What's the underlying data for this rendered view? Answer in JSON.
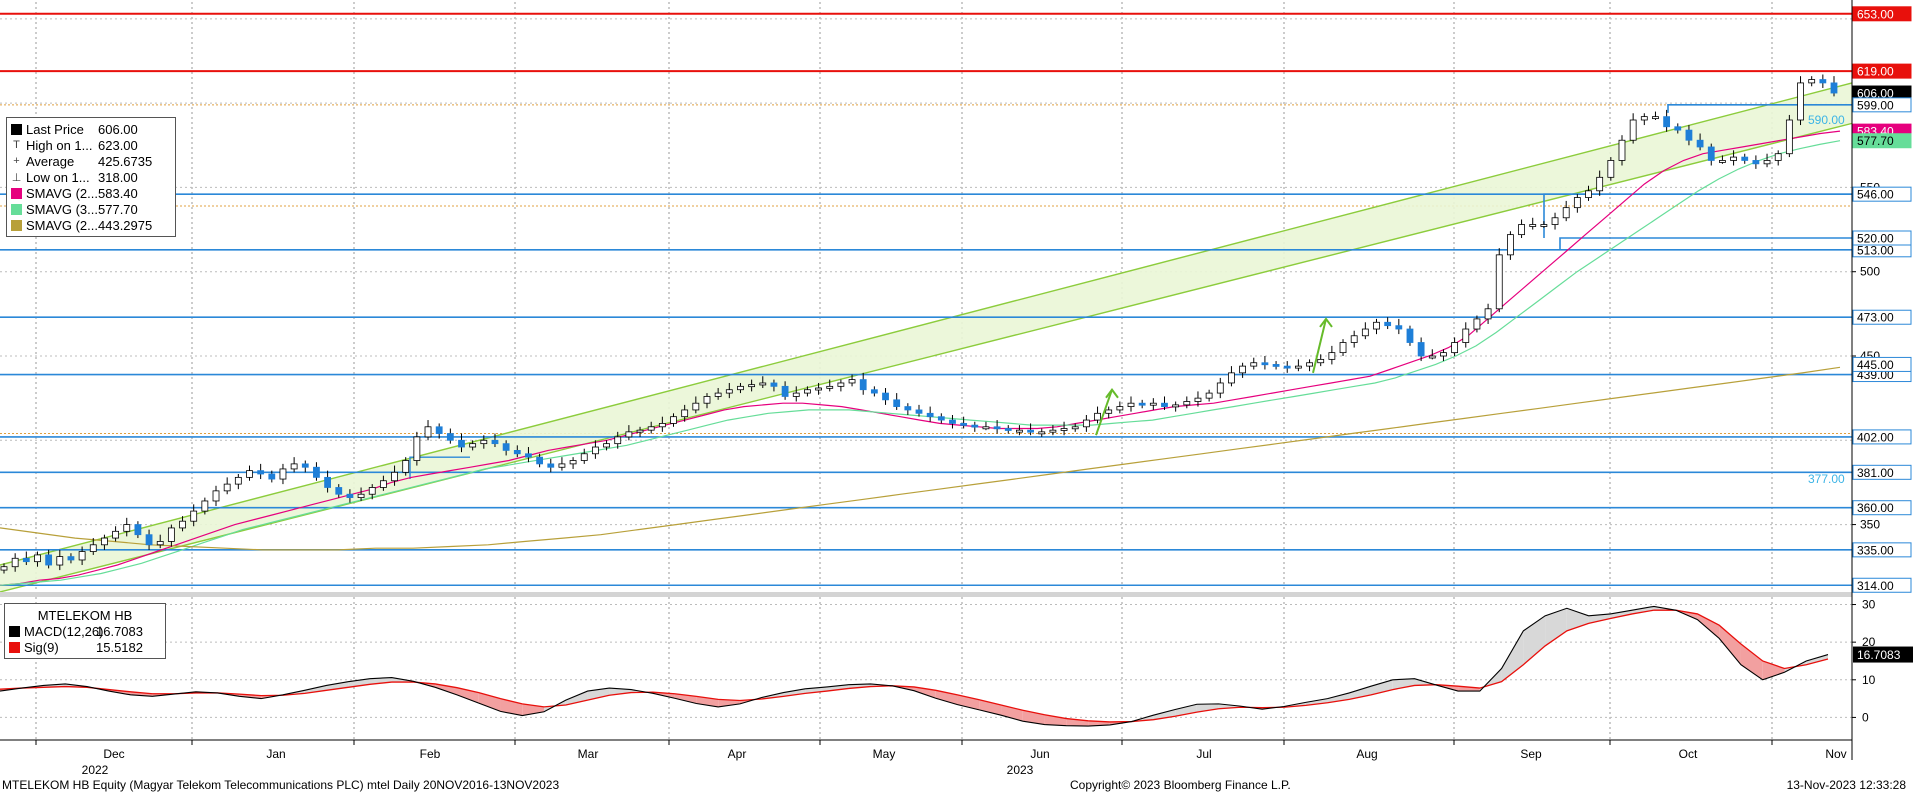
{
  "chart_data": [
    {
      "type": "candlestick",
      "title": "",
      "x_axis": {
        "months": [
          "Dec",
          "Jan",
          "Feb",
          "Mar",
          "Apr",
          "May",
          "Jun",
          "Jul",
          "Aug",
          "Sep",
          "Oct",
          "Nov"
        ],
        "years": [
          "2022",
          "2023"
        ]
      },
      "y_axis": {
        "ylim": [
          310,
          660
        ],
        "ticks": [
          350,
          450,
          500,
          550
        ],
        "side": "right"
      },
      "grid": true,
      "legend": {
        "position": "top-left",
        "entries": [
          {
            "label": "Last Price",
            "value": "606.00",
            "color": "#000000",
            "glyph": "square"
          },
          {
            "label": "High on 1...",
            "value": "623.00",
            "color": "#444444",
            "glyph": "T"
          },
          {
            "label": "Average",
            "value": "425.6735",
            "color": "#444444",
            "glyph": "+"
          },
          {
            "label": "Low on 1...",
            "value": "318.00",
            "color": "#444444",
            "glyph": "⊥"
          },
          {
            "label": "SMAVG (2...",
            "value": "583.40",
            "color": "#e6007e",
            "glyph": "square"
          },
          {
            "label": "SMAVG (3...",
            "value": "577.70",
            "color": "#66dd99",
            "glyph": "square"
          },
          {
            "label": "SMAVG (2...",
            "value": "443.2975",
            "color": "#b8a03a",
            "glyph": "square"
          }
        ]
      },
      "horizontal_levels": [
        {
          "value": 653,
          "label": "653.00",
          "color": "#e8100c",
          "style": "red"
        },
        {
          "value": 619,
          "label": "619.00",
          "color": "#e8100c",
          "style": "red"
        },
        {
          "value": 546,
          "label": "546.00",
          "color": "#2b88d8",
          "style": "blue"
        },
        {
          "value": 513,
          "label": "513.00",
          "color": "#2b88d8",
          "style": "blue"
        },
        {
          "value": 473,
          "label": "473.00",
          "color": "#2b88d8",
          "style": "blue"
        },
        {
          "value": 439,
          "label": "439.00",
          "color": "#2b88d8",
          "style": "blue"
        },
        {
          "value": 402,
          "label": "402.00",
          "color": "#2b88d8",
          "style": "blue"
        },
        {
          "value": 381,
          "label": "381.00",
          "color": "#2b88d8",
          "style": "blue"
        },
        {
          "value": 360,
          "label": "360.00",
          "color": "#2b88d8",
          "style": "blue"
        },
        {
          "value": 335,
          "label": "335.00",
          "color": "#2b88d8",
          "style": "blue"
        },
        {
          "value": 314,
          "label": "314.00",
          "color": "#2b88d8",
          "style": "blue"
        }
      ],
      "value_tags": [
        {
          "value": 606.0,
          "label": "606.00",
          "bg": "#000000",
          "fg": "#ffffff"
        },
        {
          "value": 599.0,
          "label": "599.00",
          "bg": "#ffffff",
          "fg": "#000000",
          "border": "#2b88d8"
        },
        {
          "value": 583.4,
          "label": "583.40",
          "bg": "#e6007e",
          "fg": "#ffffff"
        },
        {
          "value": 577.7,
          "label": "577.70",
          "bg": "#66dd99",
          "fg": "#000000"
        },
        {
          "value": 520.0,
          "label": "520.00",
          "bg": "#ffffff",
          "fg": "#000000",
          "border": "#2b88d8"
        },
        {
          "value": 445.0,
          "label": "445.00",
          "bg": "#ffffff",
          "fg": "#000000",
          "border": "#2b88d8"
        }
      ],
      "annotations": [
        {
          "text": "590.00",
          "value": 590,
          "color": "#3cb4e6"
        },
        {
          "text": "377.00",
          "value": 377,
          "color": "#3cb4e6"
        }
      ],
      "series": [
        {
          "name": "Last Price",
          "kind": "candle",
          "color": "#1e7fd8",
          "close": [
            325,
            330,
            328,
            332,
            326,
            331,
            329,
            334,
            338,
            342,
            346,
            350,
            344,
            338,
            340,
            348,
            352,
            358,
            364,
            370,
            374,
            378,
            382,
            380,
            377,
            383,
            386,
            384,
            378,
            372,
            368,
            366,
            368,
            372,
            376,
            381,
            388,
            402,
            408,
            404,
            400,
            396,
            398,
            400,
            398,
            394,
            392,
            390,
            386,
            384,
            386,
            388,
            392,
            396,
            398,
            402,
            405,
            406,
            408,
            410,
            414,
            418,
            422,
            426,
            428,
            430,
            432,
            433,
            434,
            432,
            426,
            428,
            430,
            431,
            432,
            434,
            436,
            430,
            428,
            424,
            420,
            418,
            416,
            414,
            412,
            410,
            409,
            408,
            408,
            407,
            406,
            406,
            405,
            405,
            406,
            407,
            408,
            412,
            416,
            418,
            420,
            422,
            421,
            422,
            420,
            421,
            423,
            425,
            428,
            434,
            440,
            444,
            446,
            445,
            444,
            443,
            444,
            446,
            448,
            452,
            458,
            462,
            466,
            470,
            468,
            466,
            458,
            450,
            450,
            452,
            458,
            466,
            472,
            478,
            510,
            522,
            528,
            528,
            528,
            532,
            538,
            544,
            548,
            556,
            566,
            578,
            590,
            592,
            592,
            586,
            584,
            578,
            574,
            566,
            566,
            568,
            566,
            564,
            566,
            570,
            590,
            612,
            614,
            612,
            606
          ]
        },
        {
          "name": "SMAVG (2...",
          "kind": "line",
          "color": "#e6007e",
          "values": [
            314,
            315,
            317,
            318,
            320,
            323,
            326,
            330,
            334,
            338,
            342,
            346,
            350,
            353,
            356,
            359,
            362,
            365,
            368,
            371,
            375,
            378,
            380,
            382,
            384,
            386,
            388,
            391,
            394,
            396,
            398,
            400,
            403,
            406,
            409,
            412,
            415,
            418,
            420,
            421,
            422,
            422,
            421,
            420,
            418,
            416,
            414,
            412,
            410,
            409,
            408,
            407,
            407,
            407,
            408,
            410,
            412,
            414,
            416,
            418,
            420,
            421,
            422,
            424,
            426,
            428,
            430,
            432,
            434,
            436,
            438,
            442,
            446,
            450,
            455,
            462,
            472,
            482,
            492,
            502,
            512,
            522,
            532,
            542,
            552,
            560,
            566,
            570,
            572,
            574,
            576,
            578,
            580,
            582,
            583.4
          ]
        },
        {
          "name": "SMAVG (3...",
          "kind": "line",
          "color": "#66dd99",
          "values": [
            314,
            315,
            316,
            317,
            319,
            321,
            324,
            327,
            331,
            335,
            339,
            343,
            347,
            350,
            353,
            356,
            359,
            362,
            365,
            368,
            371,
            374,
            377,
            380,
            383,
            385,
            387,
            389,
            391,
            393,
            395,
            397,
            400,
            403,
            406,
            409,
            412,
            414,
            416,
            417,
            418,
            418,
            418,
            417,
            416,
            415,
            414,
            413,
            412,
            411,
            410,
            409,
            409,
            409,
            409,
            410,
            411,
            412,
            414,
            416,
            418,
            420,
            422,
            424,
            426,
            428,
            430,
            432,
            434,
            437,
            441,
            445,
            450,
            456,
            464,
            473,
            482,
            491,
            500,
            508,
            516,
            524,
            532,
            540,
            548,
            555,
            561,
            566,
            570,
            573,
            575.5,
            577.7
          ]
        },
        {
          "name": "SMAVG (2...",
          "kind": "line",
          "color": "#b8a03a",
          "values": [
            348,
            345,
            342,
            340,
            338,
            337,
            336,
            335,
            335,
            335,
            336,
            336,
            337,
            338,
            340,
            342,
            344,
            347,
            350,
            353,
            356,
            359,
            362,
            365,
            368,
            371,
            374,
            377,
            380,
            383,
            386,
            389,
            392,
            395,
            398,
            401,
            404,
            407,
            410,
            413,
            416,
            419,
            422,
            425,
            428,
            431,
            434,
            437,
            440,
            443.3
          ]
        }
      ]
    },
    {
      "type": "line",
      "title": "MTELEKOM HB",
      "y_axis": {
        "ylim": [
          -6,
          32
        ],
        "ticks": [
          0,
          10,
          20,
          30
        ],
        "side": "right"
      },
      "legend": {
        "position": "top-left",
        "entries": [
          {
            "label": "MACD(12,26)",
            "value": "16.7083",
            "color": "#000000"
          },
          {
            "label": "Sig(9)",
            "value": "15.5182",
            "color": "#e8100c"
          }
        ]
      },
      "value_tag": {
        "value": 16.7083,
        "label": "16.7083",
        "bg": "#000000",
        "fg": "#ffffff"
      },
      "series": [
        {
          "name": "MACD(12,26)",
          "color": "#000000",
          "values": [
            7,
            7.8,
            8.5,
            8.9,
            8.2,
            7,
            6,
            5.6,
            6.2,
            6.8,
            6.5,
            5.6,
            5,
            6,
            7.2,
            8.5,
            9.5,
            10.3,
            10.6,
            9.6,
            8,
            6,
            3.8,
            1.6,
            0.5,
            1.5,
            4.6,
            7,
            7.8,
            7.4,
            6.4,
            5.1,
            3.7,
            2.8,
            3.6,
            5.3,
            6.6,
            7.6,
            8.1,
            8.7,
            8.9,
            8.4,
            7.1,
            5.1,
            3.4,
            2,
            0.6,
            -1,
            -1.9,
            -2.2,
            -2.3,
            -2,
            -1.1,
            0.6,
            2.1,
            3.5,
            3.6,
            3,
            2.2,
            2.9,
            4,
            5,
            6.5,
            8.3,
            10,
            10.3,
            8.6,
            7,
            7,
            13,
            23,
            27,
            29,
            27,
            27.5,
            28.5,
            29.5,
            28.5,
            26,
            21,
            14,
            10,
            12,
            15,
            16.7083
          ]
        },
        {
          "name": "Sig(9)",
          "color": "#e8100c",
          "values": [
            7.5,
            7.8,
            8,
            8.2,
            8,
            7.4,
            6.8,
            6.3,
            6.3,
            6.5,
            6.5,
            6.2,
            5.8,
            5.9,
            6.4,
            7.2,
            8,
            8.8,
            9.4,
            9.4,
            8.9,
            7.9,
            6.6,
            5,
            3.6,
            2.8,
            3.3,
            4.6,
            5.9,
            6.6,
            6.7,
            6.3,
            5.6,
            4.8,
            4.5,
            4.9,
            5.6,
            6.4,
            7,
            7.7,
            8.2,
            8.4,
            8.1,
            7.2,
            6,
            4.7,
            3.3,
            1.9,
            0.7,
            -0.3,
            -0.9,
            -1.2,
            -1.1,
            -0.6,
            0.3,
            1.4,
            2.3,
            2.7,
            2.6,
            2.7,
            3.2,
            3.9,
            4.8,
            6,
            7.4,
            8.5,
            8.7,
            8.3,
            7.8,
            9.5,
            14,
            19,
            23,
            25,
            26.3,
            27.5,
            28.5,
            28.5,
            27.5,
            24.5,
            19.5,
            15,
            13,
            14,
            15.5182
          ]
        }
      ]
    }
  ],
  "footer": {
    "security": "MTELEKOM HB Equity (Magyar Telekom Telecommunications PLC) mtel  Daily 20NOV2016-13NOV2023",
    "copyright": "Copyright© 2023 Bloomberg Finance L.P.",
    "timestamp": "13-Nov-2023 12:33:28"
  }
}
